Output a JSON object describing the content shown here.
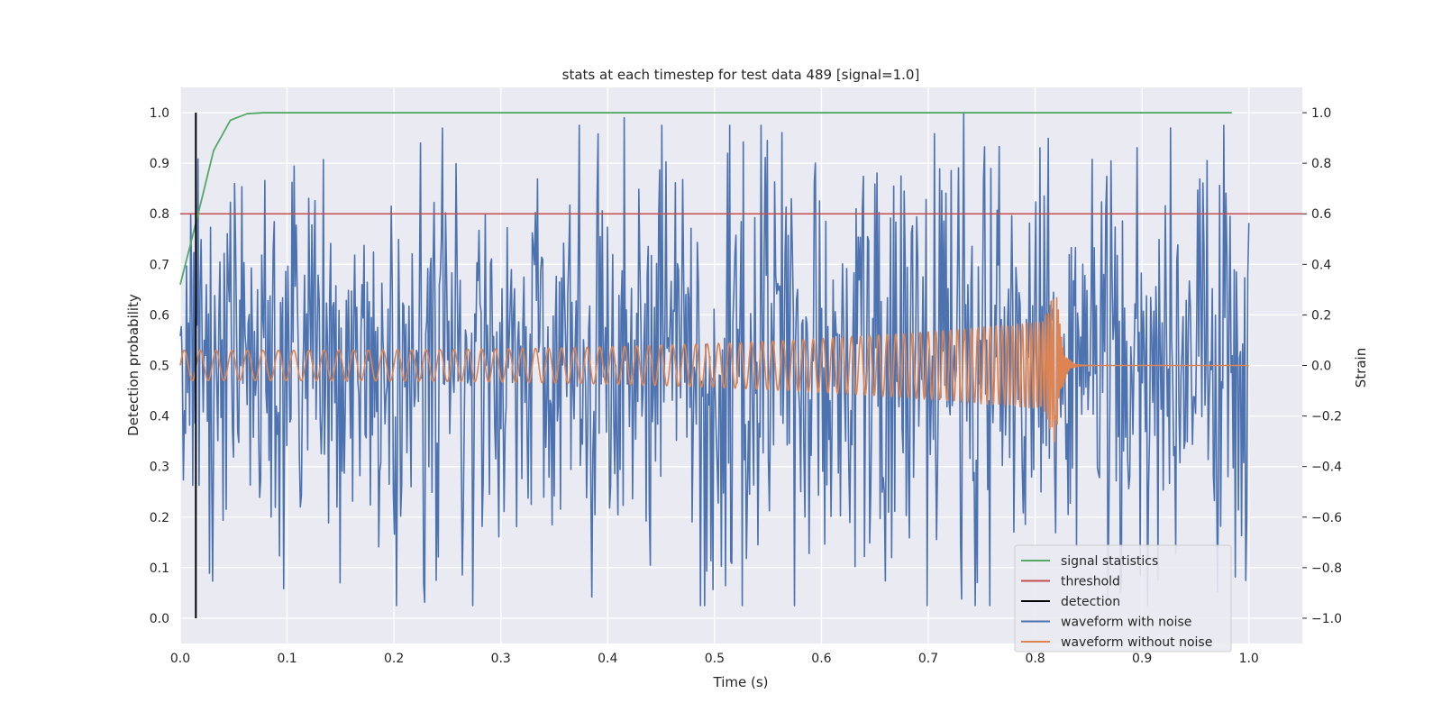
{
  "chart_data": {
    "type": "line",
    "title": "stats at each timestep for test data 489 [signal=1.0]",
    "xlabel": "Time (s)",
    "ylabel_left": "Detection probability",
    "ylabel_right": "Strain",
    "xlim": [
      0.0,
      1.05
    ],
    "ylim_left": [
      -0.05,
      1.05
    ],
    "ylim_right": [
      -1.1,
      1.1
    ],
    "x_ticks": [
      "0.0",
      "0.1",
      "0.2",
      "0.3",
      "0.4",
      "0.5",
      "0.6",
      "0.7",
      "0.8",
      "0.9",
      "1.0"
    ],
    "y_left_ticks": [
      "0.0",
      "0.1",
      "0.2",
      "0.3",
      "0.4",
      "0.5",
      "0.6",
      "0.7",
      "0.8",
      "0.9",
      "1.0"
    ],
    "y_right_ticks": [
      "−1.0",
      "−0.8",
      "−0.6",
      "−0.4",
      "−0.2",
      "0.0",
      "0.2",
      "0.4",
      "0.6",
      "0.8",
      "1.0"
    ],
    "grid": true,
    "legend_position": "lower-right",
    "colors": {
      "signal_statistics": "#55a868",
      "threshold": "#c44e52",
      "detection": "#000000",
      "waveform_with_noise": "#4c72b0",
      "waveform_without_noise": "#dd8452",
      "background": "#eaeaf2",
      "grid": "#ffffff"
    },
    "series": [
      {
        "name": "signal statistics",
        "axis": "left",
        "x": [
          0.0,
          0.0156,
          0.0312,
          0.0469,
          0.0625,
          0.0781,
          0.1,
          0.2,
          0.3,
          0.4,
          0.5,
          0.6,
          0.7,
          0.8,
          0.9,
          0.984
        ],
        "y": [
          0.66,
          0.79,
          0.925,
          0.985,
          0.998,
          1.0,
          1.0,
          1.0,
          1.0,
          1.0,
          1.0,
          1.0,
          1.0,
          1.0,
          1.0,
          1.0
        ]
      },
      {
        "name": "threshold",
        "axis": "left",
        "x": [
          0.0,
          1.05
        ],
        "y": [
          0.8,
          0.8
        ]
      },
      {
        "name": "detection",
        "axis": "left",
        "x": [
          0.0146,
          0.0146
        ],
        "y": [
          0.0,
          1.0
        ]
      },
      {
        "name": "waveform with noise",
        "axis": "right",
        "x_range": [
          0.0,
          1.0
        ],
        "points": 1024,
        "y_range": [
          -1.0,
          1.0
        ],
        "notable_peaks": [
          [
            0.15,
            -0.86
          ],
          [
            0.225,
            0.88
          ],
          [
            0.415,
            0.98
          ],
          [
            0.44,
            -0.79
          ],
          [
            0.733,
            1.0
          ],
          [
            0.927,
            0.94
          ],
          [
            0.88,
            -0.9
          ]
        ]
      },
      {
        "name": "waveform without noise",
        "axis": "right",
        "x_range": [
          0.0,
          1.0
        ],
        "points": 1024,
        "amplitude_start": 0.06,
        "amplitude_end": 0.18,
        "merger_time": 0.82,
        "peak": 0.33
      }
    ]
  }
}
